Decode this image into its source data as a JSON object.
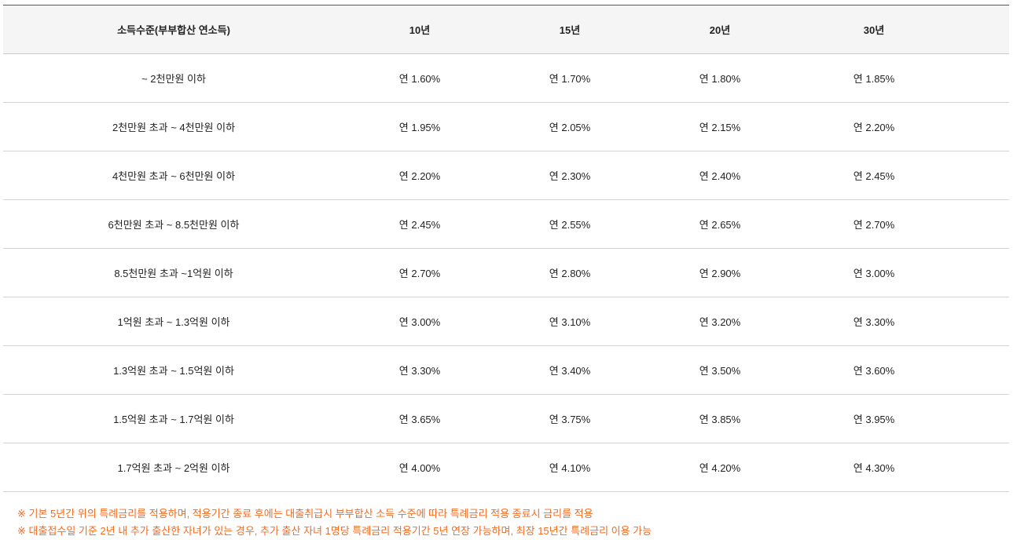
{
  "table": {
    "headers": [
      "소득수준(부부합산 연소득)",
      "10년",
      "15년",
      "20년",
      "30년"
    ],
    "rows": [
      [
        "~ 2천만원 이하",
        "연 1.60%",
        "연 1.70%",
        "연 1.80%",
        "연 1.85%"
      ],
      [
        "2천만원 초과 ~ 4천만원 이하",
        "연 1.95%",
        "연 2.05%",
        "연 2.15%",
        "연 2.20%"
      ],
      [
        "4천만원 초과 ~ 6천만원 이하",
        "연 2.20%",
        "연 2.30%",
        "연 2.40%",
        "연 2.45%"
      ],
      [
        "6천만원 초과 ~ 8.5천만원 이하",
        "연 2.45%",
        "연 2.55%",
        "연 2.65%",
        "연 2.70%"
      ],
      [
        "8.5천만원 초과 ~1억원 이하",
        "연 2.70%",
        "연 2.80%",
        "연 2.90%",
        "연 3.00%"
      ],
      [
        "1억원 초과 ~ 1.3억원 이하",
        "연 3.00%",
        "연 3.10%",
        "연 3.20%",
        "연 3.30%"
      ],
      [
        "1.3억원 초과 ~ 1.5억원 이하",
        "연 3.30%",
        "연 3.40%",
        "연 3.50%",
        "연 3.60%"
      ],
      [
        "1.5억원 초과 ~ 1.7억원 이하",
        "연 3.65%",
        "연 3.75%",
        "연 3.85%",
        "연 3.95%"
      ],
      [
        "1.7억원 초과 ~ 2억원 이하",
        "연 4.00%",
        "연 4.10%",
        "연 4.20%",
        "연 4.30%"
      ]
    ]
  },
  "notes": [
    "※ 기본 5년간 위의 특례금리를 적용하며, 적용기간 종료 후에는 대출취급시 부부합산 소득 수준에 따라 특례금리 적용 종료시 금리를 적용",
    "※ 대출접수일 기준 2년 내 추가 출산한 자녀가 있는 경우, 추가 출산 자녀 1명당 특례금리 적용기간 5년 연장 가능하며, 최장 15년간 특례금리 이용 가능"
  ],
  "colors": {
    "note_text": "#f26b22",
    "header_bg": "#f5f5f5"
  }
}
